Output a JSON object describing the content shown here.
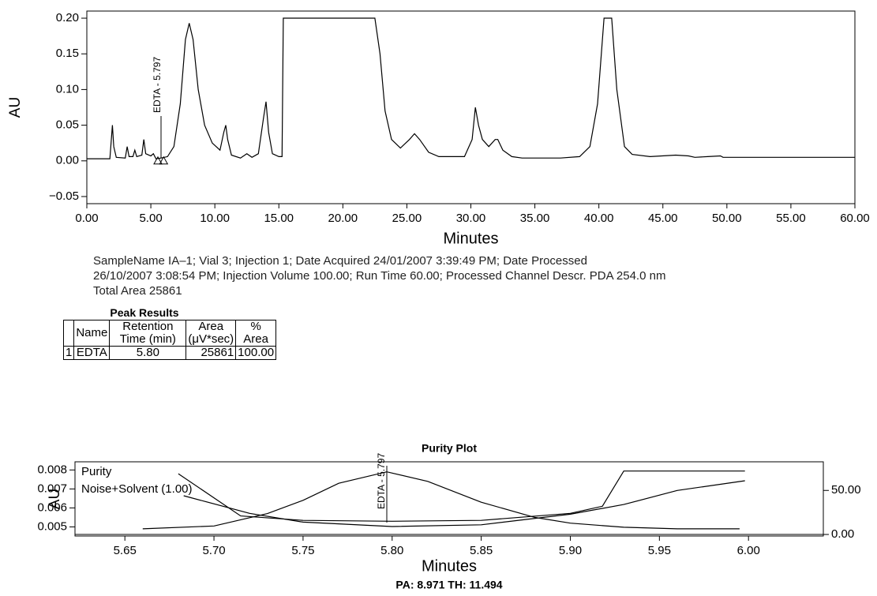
{
  "chart_data": [
    {
      "type": "line",
      "xlabel": "Minutes",
      "ylabel": "AU",
      "xlim": [
        0,
        60
      ],
      "ylim": [
        -0.06,
        0.21
      ],
      "xticks": [
        {
          "value": 0,
          "label": "0.00"
        },
        {
          "value": 5,
          "label": "5.00"
        },
        {
          "value": 10,
          "label": "10.00"
        },
        {
          "value": 15,
          "label": "15.00"
        },
        {
          "value": 20,
          "label": "20.00"
        },
        {
          "value": 25,
          "label": "25.00"
        },
        {
          "value": 30,
          "label": "30.00"
        },
        {
          "value": 35,
          "label": "35.00"
        },
        {
          "value": 40,
          "label": "40.00"
        },
        {
          "value": 45,
          "label": "45.00"
        },
        {
          "value": 50,
          "label": "50.00"
        },
        {
          "value": 55,
          "label": "55.00"
        },
        {
          "value": 60,
          "label": "60.00"
        }
      ],
      "yticks": [
        {
          "value": -0.05,
          "label": "−0.05"
        },
        {
          "value": 0,
          "label": "0.00"
        },
        0.05,
        {
          "value": 0.1,
          "label": "0.10"
        },
        0.15,
        {
          "value": 0.2,
          "label": "0.20"
        }
      ],
      "series": [
        {
          "color": "#000000",
          "x": [
            0,
            1.8,
            2.0,
            2.1,
            2.3,
            3.0,
            3.15,
            3.3,
            3.6,
            3.75,
            3.9,
            4.3,
            4.45,
            4.6,
            5.0,
            5.2,
            5.4,
            5.8,
            6.3,
            6.8,
            7.3,
            7.7,
            8.0,
            8.3,
            8.7,
            9.2,
            9.8,
            10.4,
            10.7,
            10.85,
            11.0,
            11.3,
            12.0,
            12.5,
            12.9,
            13.4,
            13.8,
            14.0,
            14.2,
            14.5,
            15.0,
            15.25,
            15.35,
            22.5,
            22.9,
            23.3,
            23.8,
            24.5,
            25.2,
            25.6,
            26.0,
            26.7,
            27.5,
            29.5,
            30.1,
            30.35,
            30.6,
            30.9,
            31.4,
            31.9,
            32.1,
            32.5,
            33.2,
            34,
            37,
            38.5,
            39.3,
            39.9,
            40.4,
            41.0,
            41.4,
            42,
            42.6,
            44,
            46,
            47,
            47.5,
            48.5,
            49.5,
            49.7,
            60
          ],
          "values": [
            0.003,
            0.003,
            0.05,
            0.02,
            0.005,
            0.004,
            0.02,
            0.006,
            0.006,
            0.015,
            0.006,
            0.008,
            0.03,
            0.01,
            0.007,
            0.01,
            0.003,
            0.004,
            0.006,
            0.02,
            0.08,
            0.17,
            0.193,
            0.17,
            0.1,
            0.05,
            0.025,
            0.015,
            0.04,
            0.05,
            0.03,
            0.008,
            0.004,
            0.01,
            0.005,
            0.01,
            0.06,
            0.083,
            0.04,
            0.01,
            0.006,
            0.006,
            0.2,
            0.2,
            0.15,
            0.07,
            0.03,
            0.018,
            0.03,
            0.038,
            0.03,
            0.012,
            0.006,
            0.006,
            0.03,
            0.075,
            0.05,
            0.03,
            0.02,
            0.03,
            0.03,
            0.015,
            0.006,
            0.004,
            0.004,
            0.006,
            0.02,
            0.08,
            0.2,
            0.2,
            0.1,
            0.02,
            0.009,
            0.006,
            0.008,
            0.007,
            0.005,
            0.006,
            0.007,
            0.005,
            0.005
          ]
        }
      ],
      "annotation": {
        "text": "EDTA - 5.797",
        "x": 5.797
      },
      "markers": {
        "x": [
          5.55,
          6.0
        ],
        "y": [
          0,
          0
        ]
      }
    },
    {
      "type": "line",
      "title": "Purity Plot",
      "xlabel": "Minutes",
      "ylabel": "AU",
      "caption": "PA: 8.971 TH: 11.494",
      "xlim": [
        5.622,
        6.042
      ],
      "ylim": [
        0.00452,
        0.00843
      ],
      "y2lim": [
        -1.75,
        82.5
      ],
      "xticks": [
        5.65,
        {
          "value": 5.7,
          "label": "5.70"
        },
        5.75,
        {
          "value": 5.8,
          "label": "5.80"
        },
        5.85,
        {
          "value": 5.9,
          "label": "5.90"
        },
        5.95,
        {
          "value": 6.0,
          "label": "6.00"
        }
      ],
      "yticks": [
        0.005,
        0.006,
        0.007,
        0.008
      ],
      "y2ticks": [
        {
          "value": 0,
          "label": "0.00"
        },
        {
          "value": 50,
          "label": "50.00"
        }
      ],
      "legend": "upper left",
      "series": [
        {
          "color": "#000000",
          "x": [
            5.66,
            5.7,
            5.73,
            5.75,
            5.77,
            5.797,
            5.82,
            5.85,
            5.88,
            5.9,
            5.93,
            5.96,
            5.995
          ],
          "values": [
            0.0049,
            0.00505,
            0.0057,
            0.0064,
            0.0073,
            0.0079,
            0.0074,
            0.0063,
            0.0055,
            0.0052,
            0.00498,
            0.0049,
            0.0049
          ]
        },
        {
          "name": "Purity",
          "color": "#000000",
          "axis": "y2",
          "x": [
            5.68,
            5.715,
            5.75,
            5.8,
            5.85,
            5.9,
            5.918,
            5.93,
            5.998
          ],
          "values": [
            69,
            21,
            16,
            15,
            16,
            24,
            32,
            72,
            72
          ]
        },
        {
          "name": "Noise+Solvent (1.00)",
          "color": "#000000",
          "axis": "y2",
          "x": [
            5.683,
            5.72,
            5.75,
            5.8,
            5.85,
            5.9,
            5.93,
            5.96,
            5.998
          ],
          "values": [
            44,
            24,
            14,
            9,
            11,
            23,
            34,
            50,
            61
          ]
        }
      ],
      "annotation": {
        "text": "EDTA - 5.797",
        "x": 5.797
      }
    }
  ],
  "info": {
    "lines": [
      "SampleName IA–1; Vial 3; Injection 1; Date Acquired 24/01/2007 3:39:49 PM; Date Processed",
      "26/10/2007 3:08:54 PM; Injection Volume 100.00; Run Time 60.00; Processed Channel Descr. PDA 254.0 nm",
      "Total Area 25861"
    ]
  },
  "table": {
    "title": "Peak Results",
    "header": [
      "Name",
      "Retention Time (min)",
      "Area (μV*sec)",
      "% Area"
    ],
    "rows": [
      [
        "1",
        "EDTA",
        "5.80",
        "25861",
        "100.00"
      ]
    ]
  }
}
